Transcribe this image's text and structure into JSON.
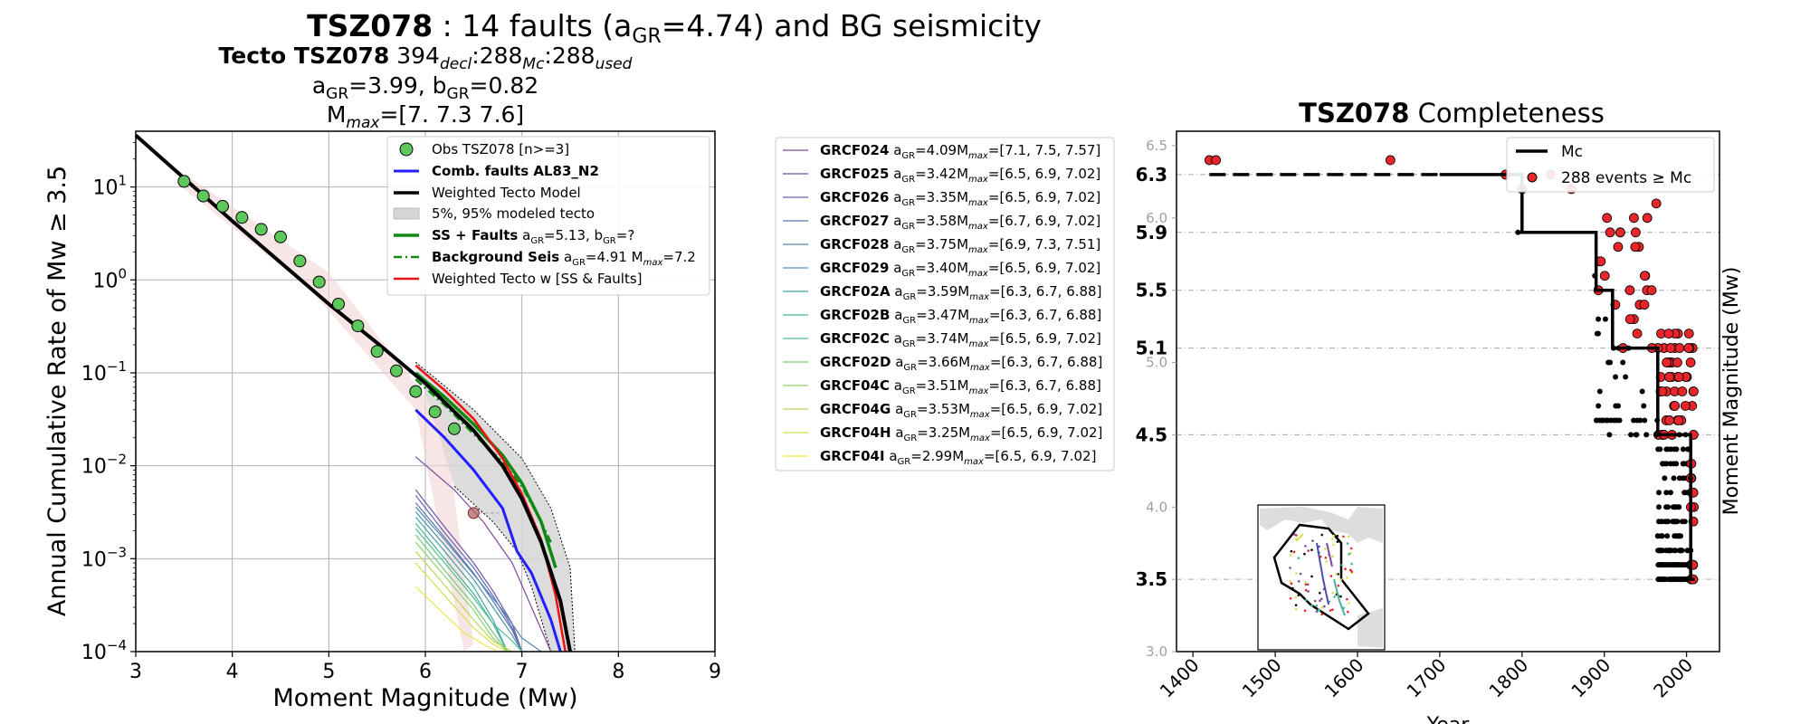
{
  "suptitle": {
    "bold": "TSZ078",
    "rest_a": " : 14 faults (a",
    "sub": "GR",
    "rest_b": "=4.74) and BG seismicity"
  },
  "left_panel": {
    "title1": {
      "bold": "Tecto TSZ078",
      "n1": "394",
      "s1": "decl",
      "n2": ":288",
      "s2": "Mc",
      "n3": ":288",
      "s3": "used"
    },
    "title2": {
      "a_label": "a",
      "a_sub": "GR",
      "a_val": "=3.99,  b",
      "b_sub": "GR",
      "b_val": "=0.82"
    },
    "title3": {
      "m_label": "M",
      "m_sub": "max",
      "m_val": "=[7.  7.3 7.6]"
    }
  },
  "mfd_chart": {
    "type": "line",
    "xlabel": "Moment Magnitude (Mw)",
    "ylabel": "Annual Cumulative Rate of Mw  ≥  3.5",
    "xlim": [
      3,
      9
    ],
    "ylim_log10": [
      -4,
      1.6
    ],
    "x_ticks": [
      "3",
      "4",
      "5",
      "6",
      "7",
      "8",
      "9"
    ],
    "y_ticks": [
      {
        "base": "10",
        "exp": "−4"
      },
      {
        "base": "10",
        "exp": "−3"
      },
      {
        "base": "10",
        "exp": "−2"
      },
      {
        "base": "10",
        "exp": "−1"
      },
      {
        "base": "10",
        "exp": "0"
      },
      {
        "base": "10",
        "exp": "1"
      }
    ],
    "grid": true,
    "legend_position": "upper-right",
    "legend": [
      {
        "label": "Obs TSZ078 [n>=3]",
        "bold": "",
        "rest": ""
      },
      {
        "label": "Comb. faults AL83_N2",
        "bold": "Comb. faults AL83_N2",
        "rest": ""
      },
      {
        "label": "Weighted Tecto Model",
        "bold": "",
        "rest": ""
      },
      {
        "label": "5%, 95% modeled tecto",
        "bold": "",
        "rest": ""
      },
      {
        "label": "SS + Faults",
        "bold": "SS + Faults",
        "rest": " a_GR=5.13,  b_GR=?"
      },
      {
        "label": "Background Seis",
        "bold": "Background Seis",
        "rest": " a_GR=4.91 M_max=7.2"
      },
      {
        "label": "Weighted Tecto w [SS & Faults]",
        "bold": "",
        "rest": ""
      }
    ],
    "legend_text": {
      "obs": "Obs TSZ078 [n>=3]",
      "comb": "Comb. faults AL83_N2",
      "tecto": "Weighted Tecto Model",
      "band": "5%, 95% modeled tecto",
      "ss_bold": "SS + Faults",
      "ss_a": " a",
      "ss_sub1": "GR",
      "ss_b": "=5.13,  b",
      "ss_sub2": "GR",
      "ss_c": "=?",
      "bg_bold": "Background Seis",
      "bg_a": " a",
      "bg_sub1": "GR",
      "bg_b": "=4.91 M",
      "bg_sub2": "max",
      "bg_c": "=7.2",
      "wss": "Weighted Tecto w [SS & Faults]"
    },
    "colors": {
      "obs": "#5cc85c",
      "comb": "#1f1fff",
      "tecto": "#000000",
      "band": "#d6d6d6",
      "ss": "#118811",
      "bg": "#118811",
      "wss": "#ee1111"
    },
    "observed_points": {
      "x": [
        3.5,
        3.7,
        3.9,
        4.1,
        4.3,
        4.5,
        4.7,
        4.9,
        5.1,
        5.3,
        5.5,
        5.7,
        5.9,
        6.1,
        6.3
      ],
      "y": [
        11.5,
        8.0,
        6.2,
        4.7,
        3.5,
        2.9,
        1.6,
        0.95,
        0.55,
        0.32,
        0.17,
        0.105,
        0.063,
        0.038,
        0.025
      ]
    },
    "special_point": {
      "x": 6.5,
      "y": 0.0031
    },
    "series": [
      {
        "name": "Weighted Tecto Model",
        "x": [
          3.0,
          4.0,
          5.0,
          5.5,
          6.0,
          6.5,
          6.8,
          7.0,
          7.2,
          7.4,
          7.5
        ],
        "y": [
          36,
          4.3,
          0.55,
          0.21,
          0.077,
          0.024,
          0.01,
          0.0044,
          0.0015,
          0.00035,
          0.0001
        ]
      },
      {
        "name": "Weighted Tecto w [SS & Faults]",
        "x": [
          5.9,
          6.2,
          6.5,
          6.8,
          7.0,
          7.2,
          7.35,
          7.45
        ],
        "y": [
          0.12,
          0.065,
          0.032,
          0.012,
          0.005,
          0.0016,
          0.0004,
          0.0001
        ]
      },
      {
        "name": "SS + Faults",
        "x": [
          5.9,
          6.2,
          6.5,
          6.8,
          7.0,
          7.2,
          7.35
        ],
        "y": [
          0.1,
          0.055,
          0.028,
          0.013,
          0.0065,
          0.0025,
          0.0008
        ]
      },
      {
        "name": "Background Seis",
        "x": [
          5.9,
          6.2,
          6.5,
          6.8,
          7.0,
          7.2,
          7.3
        ],
        "y": [
          0.085,
          0.045,
          0.022,
          0.011,
          0.006,
          0.0025,
          0.0015
        ]
      },
      {
        "name": "Comb. faults AL83_N2",
        "x": [
          5.9,
          6.2,
          6.5,
          6.8,
          6.95,
          7.1,
          7.3,
          7.4
        ],
        "y": [
          0.04,
          0.02,
          0.009,
          0.0035,
          0.0012,
          0.0007,
          0.00022,
          0.0001
        ]
      }
    ],
    "band_upper": {
      "x": [
        5.9,
        6.5,
        7.0,
        7.3,
        7.5,
        7.55
      ],
      "y": [
        0.13,
        0.04,
        0.012,
        0.0035,
        0.0008,
        0.0001
      ]
    },
    "band_lower": {
      "x": [
        6.3,
        6.7,
        6.95,
        7.1,
        7.3
      ],
      "y": [
        0.006,
        0.0025,
        0.0012,
        0.0005,
        0.0001
      ]
    },
    "faults": [
      {
        "name": "GRCF024",
        "a": "4.09",
        "mmax": "[7.1, 7.5, 7.57]",
        "color": "#7b4a9c",
        "x": [
          5.9,
          6.3,
          6.6,
          6.9,
          7.1,
          7.3
        ],
        "y": [
          0.0125,
          0.0055,
          0.0025,
          0.0009,
          0.0003,
          0.0001
        ]
      },
      {
        "name": "GRCF025",
        "a": "3.42",
        "mmax": "[6.5, 6.9, 7.02]",
        "color": "#6a55a8",
        "x": [
          5.9,
          6.2,
          6.5,
          6.7,
          6.9,
          7.0
        ],
        "y": [
          0.0055,
          0.0022,
          0.0009,
          0.00045,
          0.0002,
          0.0001
        ]
      },
      {
        "name": "GRCF026",
        "a": "3.35",
        "mmax": "[6.5, 6.9, 7.02]",
        "color": "#6066b0",
        "x": [
          5.9,
          6.2,
          6.5,
          6.7,
          6.9,
          7.0
        ],
        "y": [
          0.0048,
          0.0019,
          0.0008,
          0.0004,
          0.00018,
          0.0001
        ]
      },
      {
        "name": "GRCF027",
        "a": "3.58",
        "mmax": "[6.7, 6.9, 7.02]",
        "color": "#5a74b0",
        "x": [
          5.9,
          6.2,
          6.5,
          6.7,
          6.9,
          7.0
        ],
        "y": [
          0.004,
          0.0017,
          0.0007,
          0.00035,
          0.00017,
          0.0001
        ]
      },
      {
        "name": "GRCF028",
        "a": "3.75",
        "mmax": "[6.9, 7.3, 7.51]",
        "color": "#4f86ad",
        "x": [
          5.9,
          6.2,
          6.5,
          6.8,
          7.0,
          7.2
        ],
        "y": [
          0.0036,
          0.0016,
          0.00068,
          0.00028,
          0.00014,
          0.0001
        ]
      },
      {
        "name": "GRCF029",
        "a": "3.40",
        "mmax": "[6.5, 6.9, 7.02]",
        "color": "#4a96aa",
        "x": [
          5.9,
          6.2,
          6.5,
          6.7,
          6.9,
          7.0
        ],
        "y": [
          0.0032,
          0.0014,
          0.0006,
          0.0003,
          0.00015,
          0.0001
        ]
      },
      {
        "name": "GRCF02A",
        "a": "3.59",
        "mmax": "[6.3, 6.7, 6.88]",
        "color": "#44a5a3",
        "x": [
          5.9,
          6.2,
          6.5,
          6.7,
          6.85
        ],
        "y": [
          0.0028,
          0.0012,
          0.0005,
          0.00022,
          0.0001
        ]
      },
      {
        "name": "GRCF02B",
        "a": "3.47",
        "mmax": "[6.3, 6.7, 6.88]",
        "color": "#45b39a",
        "x": [
          5.9,
          6.2,
          6.5,
          6.7,
          6.85
        ],
        "y": [
          0.0024,
          0.001,
          0.00042,
          0.0002,
          0.0001
        ]
      },
      {
        "name": "GRCF02C",
        "a": "3.74",
        "mmax": "[6.5, 6.9, 7.02]",
        "color": "#54bf8c",
        "x": [
          5.9,
          6.2,
          6.5,
          6.7,
          6.9,
          7.0
        ],
        "y": [
          0.0021,
          0.0009,
          0.00038,
          0.0002,
          0.00013,
          0.0001
        ]
      },
      {
        "name": "GRCF02D",
        "a": "3.66",
        "mmax": "[6.3, 6.7, 6.88]",
        "color": "#6cc97b",
        "x": [
          5.9,
          6.2,
          6.5,
          6.7,
          6.85
        ],
        "y": [
          0.0018,
          0.00075,
          0.00032,
          0.00016,
          0.0001
        ]
      },
      {
        "name": "GRCF04C",
        "a": "3.51",
        "mmax": "[6.3, 6.7, 6.88]",
        "color": "#8fd26a",
        "x": [
          5.9,
          6.2,
          6.5,
          6.7,
          6.85
        ],
        "y": [
          0.0015,
          0.00065,
          0.00028,
          0.00014,
          0.0001
        ]
      },
      {
        "name": "GRCF04G",
        "a": "3.53",
        "mmax": "[6.5, 6.9, 7.02]",
        "color": "#b6da57",
        "x": [
          5.9,
          6.2,
          6.5,
          6.7,
          6.9
        ],
        "y": [
          0.0012,
          0.00052,
          0.00022,
          0.00013,
          0.0001
        ]
      },
      {
        "name": "GRCF04H",
        "a": "3.25",
        "mmax": "[6.5, 6.9, 7.02]",
        "color": "#d8df4a",
        "x": [
          5.9,
          6.2,
          6.5,
          6.7,
          6.85
        ],
        "y": [
          0.0009,
          0.0004,
          0.00018,
          0.00012,
          0.0001
        ]
      },
      {
        "name": "GRCF04I",
        "a": "2.99",
        "mmax": "[6.5, 6.9, 7.02]",
        "color": "#f0e64a",
        "x": [
          5.9,
          6.2,
          6.4,
          6.6,
          6.75
        ],
        "y": [
          0.0005,
          0.00025,
          0.00016,
          0.00012,
          0.0001
        ]
      }
    ]
  },
  "fault_legend_labels": {
    "a_prefix": " a",
    "a_sub": "GR",
    "m_prefix": "M",
    "m_sub": "max",
    "eq": "="
  },
  "completeness_chart": {
    "type": "scatter",
    "title_bold": "TSZ078",
    "title_rest": " Completeness",
    "xlabel": "Year",
    "ylabel": "Moment Magnitude (Mw)",
    "xlim": [
      1380,
      2040
    ],
    "ylim": [
      3.0,
      6.6
    ],
    "x_ticks": [
      "1400",
      "1500",
      "1600",
      "1700",
      "1800",
      "1900",
      "2000"
    ],
    "y_ticks_minor": [
      "3.0",
      "3.5",
      "4.0",
      "4.5",
      "5.0",
      "5.5",
      "6.0",
      "6.5"
    ],
    "y_ticks_bold": [
      "3.5",
      "4.5",
      "5.1",
      "5.5",
      "5.9",
      "6.3"
    ],
    "legend_position": "upper-right",
    "legend": [
      "Mc",
      "288 events  ≥ Mc"
    ],
    "mc_step": {
      "year": [
        1420,
        1800,
        1800,
        1890,
        1890,
        1910,
        1910,
        1965,
        1965,
        2005,
        2005,
        2010
      ],
      "mag": [
        6.3,
        6.3,
        5.9,
        5.9,
        5.5,
        5.5,
        5.1,
        5.1,
        4.5,
        4.5,
        3.5,
        3.5
      ]
    },
    "colors": {
      "event_above": "#e8262a",
      "event_below": "#000000",
      "mc": "#000000"
    }
  },
  "inset_map": {
    "visible": true
  }
}
